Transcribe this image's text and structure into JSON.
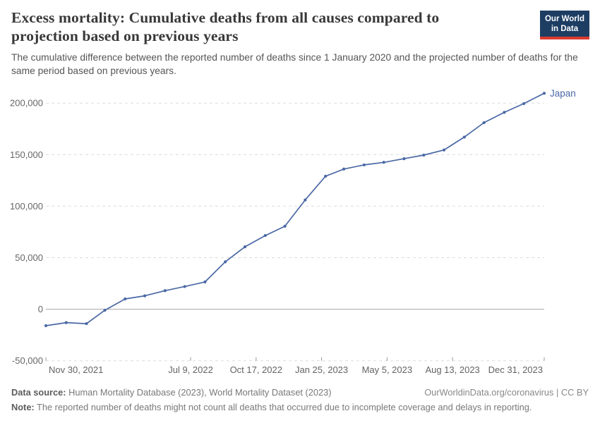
{
  "header": {
    "title": "Excess mortality: Cumulative deaths from all causes compared to projection based on previous years",
    "subtitle": "The cumulative difference between the reported number of deaths since 1 January 2020 and the projected number of deaths for the same period based on previous years.",
    "logo": {
      "line1": "Our World",
      "line2": "in Data"
    }
  },
  "chart_data": {
    "type": "line",
    "title": "Excess mortality: Cumulative deaths from all causes compared to projection based on previous years",
    "xlabel": "",
    "ylabel": "",
    "ylim": [
      -50000,
      210000
    ],
    "grid": "horizontal-dashed",
    "legend_position": "end-of-line",
    "series": [
      {
        "name": "Japan",
        "color": "#4a68a5",
        "x": [
          "2021-11-30",
          "2021-12-31",
          "2022-01-31",
          "2022-02-28",
          "2022-03-31",
          "2022-04-30",
          "2022-05-31",
          "2022-06-30",
          "2022-07-31",
          "2022-08-31",
          "2022-09-30",
          "2022-10-31",
          "2022-11-30",
          "2022-12-31",
          "2023-01-31",
          "2023-02-28",
          "2023-03-31",
          "2023-04-30",
          "2023-05-31",
          "2023-06-30",
          "2023-07-31",
          "2023-08-31",
          "2023-09-30",
          "2023-10-31",
          "2023-11-30",
          "2023-12-31"
        ],
        "values": [
          -16000,
          -13000,
          -14000,
          -1000,
          10000,
          13000,
          18000,
          22000,
          26500,
          46000,
          60500,
          71500,
          80500,
          106000,
          129000,
          136000,
          140000,
          142500,
          146000,
          149500,
          154500,
          167000,
          181000,
          191000,
          199500,
          209500
        ]
      }
    ],
    "x_ticks": [
      {
        "label": "Nov 30, 2021",
        "date": "2021-11-30"
      },
      {
        "label": "Jul 9, 2022",
        "date": "2022-07-09"
      },
      {
        "label": "Oct 17, 2022",
        "date": "2022-10-17"
      },
      {
        "label": "Jan 25, 2023",
        "date": "2023-01-25"
      },
      {
        "label": "May 5, 2023",
        "date": "2023-05-05"
      },
      {
        "label": "Aug 13, 2023",
        "date": "2023-08-13"
      },
      {
        "label": "Dec 31, 2023",
        "date": "2023-12-31"
      }
    ],
    "y_ticks": [
      {
        "label": "-50,000",
        "value": -50000
      },
      {
        "label": "0",
        "value": 0
      },
      {
        "label": "50,000",
        "value": 50000
      },
      {
        "label": "100,000",
        "value": 100000
      },
      {
        "label": "150,000",
        "value": 150000
      },
      {
        "label": "200,000",
        "value": 200000
      }
    ]
  },
  "colors": {
    "series_japan": "#4a68a5",
    "gridline": "#dcdcdc",
    "zero_line": "#a6a6a6",
    "axis_tick": "#999999",
    "axis_label": "#666666",
    "logo_navy": "#1d3d63",
    "logo_red": "#dc3b31"
  },
  "footer": {
    "datasource_label": "Data source:",
    "datasource_text": " Human Mortality Database (2023), World Mortality Dataset (2023)",
    "link": "OurWorldinData.org/coronavirus",
    "separator": " | ",
    "license": "CC BY",
    "note_label": "Note:",
    "note_text": " The reported number of deaths might not count all deaths that occurred due to incomplete coverage and delays in reporting."
  }
}
